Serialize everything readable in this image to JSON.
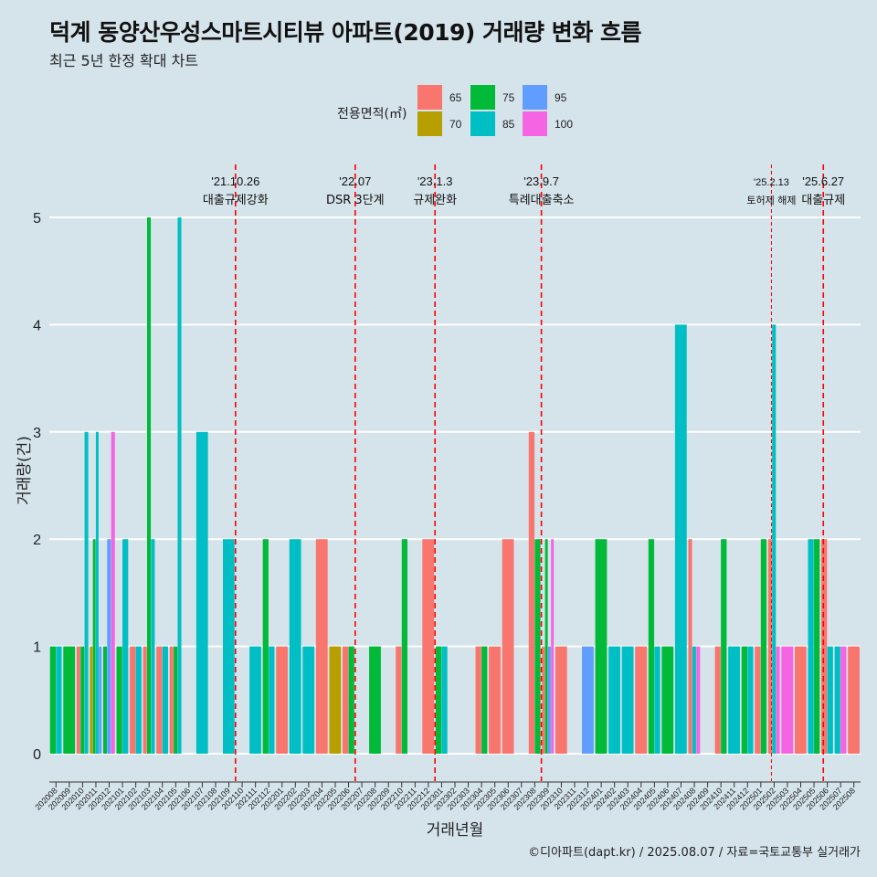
{
  "header": {
    "title": "덕계 동양산우성스마트시티뷰 아파트(2019) 거래량 변화 흐름",
    "subtitle": "최근 5년 한정 확대 차트"
  },
  "caption": "©디아파트(dapt.kr) / 2025.08.07 / 자료=국토교통부 실거래가",
  "colors": {
    "background": "#d5e3eb",
    "grid": "#ffffff",
    "vline": "#ff0000",
    "a65": "#f8766d",
    "a70": "#b79f00",
    "a75": "#00ba38",
    "a85": "#00bfc4",
    "a95": "#619cff",
    "a100": "#f564e3"
  },
  "chart_data": {
    "type": "bar",
    "stacking": "dodge",
    "title": "덕계 동양산우성스마트시티뷰 아파트(2019) 거래량 변화 흐름",
    "xlabel": "거래년월",
    "ylabel": "거래량(건)",
    "ylim": [
      -0.25,
      5.6
    ],
    "yticks": [
      0,
      1,
      2,
      3,
      4,
      5
    ],
    "grid": true,
    "legend": {
      "title": "전용면적(㎡)",
      "placement": "top",
      "items": [
        {
          "key": "65",
          "label": "65",
          "color": "#f8766d"
        },
        {
          "key": "70",
          "label": "70",
          "color": "#b79f00"
        },
        {
          "key": "75",
          "label": "75",
          "color": "#00ba38"
        },
        {
          "key": "85",
          "label": "85",
          "color": "#00bfc4"
        },
        {
          "key": "95",
          "label": "95",
          "color": "#619cff"
        },
        {
          "key": "100",
          "label": "100",
          "color": "#f564e3"
        }
      ]
    },
    "categories": [
      "202008",
      "202009",
      "202010",
      "202011",
      "202012",
      "202101",
      "202102",
      "202103",
      "202104",
      "202105",
      "202106",
      "202107",
      "202108",
      "202109",
      "202110",
      "202111",
      "202112",
      "202201",
      "202202",
      "202203",
      "202204",
      "202205",
      "202206",
      "202207",
      "202208",
      "202209",
      "202210",
      "202211",
      "202212",
      "202301",
      "202302",
      "202303",
      "202304",
      "202305",
      "202306",
      "202307",
      "202308",
      "202309",
      "202310",
      "202311",
      "202312",
      "202401",
      "202402",
      "202403",
      "202404",
      "202405",
      "202406",
      "202407",
      "202408",
      "202409",
      "202410",
      "202411",
      "202412",
      "202501",
      "202502",
      "202503",
      "202504",
      "202505",
      "202506",
      "202507",
      "202508"
    ],
    "groups": [
      {
        "month": "202008",
        "bars": [
          {
            "area": "75",
            "value": 1
          },
          {
            "area": "85",
            "value": 1
          }
        ]
      },
      {
        "month": "202009",
        "bars": [
          {
            "area": "75",
            "value": 1
          }
        ]
      },
      {
        "month": "202010",
        "bars": [
          {
            "area": "65",
            "value": 1
          },
          {
            "area": "75",
            "value": 1
          },
          {
            "area": "85",
            "value": 3
          }
        ]
      },
      {
        "month": "202011",
        "bars": [
          {
            "area": "70",
            "value": 1
          },
          {
            "area": "75",
            "value": 2
          },
          {
            "area": "85",
            "value": 3
          },
          {
            "area": "95",
            "value": 1
          }
        ]
      },
      {
        "month": "202012",
        "bars": [
          {
            "area": "75",
            "value": 1
          },
          {
            "area": "95",
            "value": 2
          },
          {
            "area": "100",
            "value": 3
          }
        ]
      },
      {
        "month": "202101",
        "bars": [
          {
            "area": "75",
            "value": 1
          },
          {
            "area": "85",
            "value": 2
          }
        ]
      },
      {
        "month": "202102",
        "bars": [
          {
            "area": "65",
            "value": 1
          },
          {
            "area": "85",
            "value": 1
          }
        ]
      },
      {
        "month": "202103",
        "bars": [
          {
            "area": "65",
            "value": 1
          },
          {
            "area": "75",
            "value": 5
          },
          {
            "area": "85",
            "value": 2
          }
        ]
      },
      {
        "month": "202104",
        "bars": [
          {
            "area": "65",
            "value": 1
          },
          {
            "area": "85",
            "value": 1
          }
        ]
      },
      {
        "month": "202105",
        "bars": [
          {
            "area": "65",
            "value": 1
          },
          {
            "area": "75",
            "value": 1
          },
          {
            "area": "85",
            "value": 5
          }
        ]
      },
      {
        "month": "202106",
        "bars": []
      },
      {
        "month": "202107",
        "bars": [
          {
            "area": "85",
            "value": 3
          }
        ]
      },
      {
        "month": "202108",
        "bars": []
      },
      {
        "month": "202109",
        "bars": [
          {
            "area": "85",
            "value": 2
          }
        ]
      },
      {
        "month": "202110",
        "bars": []
      },
      {
        "month": "202111",
        "bars": [
          {
            "area": "85",
            "value": 1
          }
        ]
      },
      {
        "month": "202112",
        "bars": [
          {
            "area": "75",
            "value": 2
          },
          {
            "area": "85",
            "value": 1
          }
        ]
      },
      {
        "month": "202201",
        "bars": [
          {
            "area": "65",
            "value": 1
          }
        ]
      },
      {
        "month": "202202",
        "bars": [
          {
            "area": "85",
            "value": 2
          }
        ]
      },
      {
        "month": "202203",
        "bars": [
          {
            "area": "85",
            "value": 1
          }
        ]
      },
      {
        "month": "202204",
        "bars": [
          {
            "area": "65",
            "value": 2
          }
        ]
      },
      {
        "month": "202205",
        "bars": [
          {
            "area": "70",
            "value": 1
          }
        ]
      },
      {
        "month": "202206",
        "bars": [
          {
            "area": "65",
            "value": 1
          },
          {
            "area": "75",
            "value": 1
          }
        ]
      },
      {
        "month": "202207",
        "bars": []
      },
      {
        "month": "202208",
        "bars": [
          {
            "area": "75",
            "value": 1
          }
        ]
      },
      {
        "month": "202209",
        "bars": []
      },
      {
        "month": "202210",
        "bars": [
          {
            "area": "65",
            "value": 1
          },
          {
            "area": "75",
            "value": 2
          }
        ]
      },
      {
        "month": "202211",
        "bars": []
      },
      {
        "month": "202212",
        "bars": [
          {
            "area": "65",
            "value": 2
          }
        ]
      },
      {
        "month": "202301",
        "bars": [
          {
            "area": "75",
            "value": 1
          },
          {
            "area": "85",
            "value": 1
          }
        ]
      },
      {
        "month": "202302",
        "bars": []
      },
      {
        "month": "202303",
        "bars": []
      },
      {
        "month": "202304",
        "bars": [
          {
            "area": "65",
            "value": 1
          },
          {
            "area": "75",
            "value": 1
          }
        ]
      },
      {
        "month": "202305",
        "bars": [
          {
            "area": "65",
            "value": 1
          }
        ]
      },
      {
        "month": "202306",
        "bars": [
          {
            "area": "65",
            "value": 2
          }
        ]
      },
      {
        "month": "202307",
        "bars": []
      },
      {
        "month": "202308",
        "bars": [
          {
            "area": "65",
            "value": 3
          },
          {
            "area": "75",
            "value": 2
          }
        ]
      },
      {
        "month": "202309",
        "bars": [
          {
            "area": "65",
            "value": 1
          },
          {
            "area": "75",
            "value": 2
          },
          {
            "area": "95",
            "value": 1
          },
          {
            "area": "100",
            "value": 2
          }
        ]
      },
      {
        "month": "202310",
        "bars": [
          {
            "area": "65",
            "value": 1
          }
        ]
      },
      {
        "month": "202311",
        "bars": []
      },
      {
        "month": "202312",
        "bars": [
          {
            "area": "95",
            "value": 1
          }
        ]
      },
      {
        "month": "202401",
        "bars": [
          {
            "area": "75",
            "value": 2
          }
        ]
      },
      {
        "month": "202402",
        "bars": [
          {
            "area": "85",
            "value": 1
          }
        ]
      },
      {
        "month": "202403",
        "bars": [
          {
            "area": "85",
            "value": 1
          }
        ]
      },
      {
        "month": "202404",
        "bars": [
          {
            "area": "65",
            "value": 1
          }
        ]
      },
      {
        "month": "202405",
        "bars": [
          {
            "area": "75",
            "value": 2
          },
          {
            "area": "85",
            "value": 1
          }
        ]
      },
      {
        "month": "202406",
        "bars": [
          {
            "area": "75",
            "value": 1
          }
        ]
      },
      {
        "month": "202407",
        "bars": [
          {
            "area": "85",
            "value": 4
          }
        ]
      },
      {
        "month": "202408",
        "bars": [
          {
            "area": "65",
            "value": 2
          },
          {
            "area": "85",
            "value": 1
          },
          {
            "area": "100",
            "value": 1
          }
        ]
      },
      {
        "month": "202409",
        "bars": []
      },
      {
        "month": "202410",
        "bars": [
          {
            "area": "65",
            "value": 1
          },
          {
            "area": "75",
            "value": 2
          }
        ]
      },
      {
        "month": "202411",
        "bars": [
          {
            "area": "85",
            "value": 1
          }
        ]
      },
      {
        "month": "202412",
        "bars": [
          {
            "area": "75",
            "value": 1
          },
          {
            "area": "85",
            "value": 1
          }
        ]
      },
      {
        "month": "202501",
        "bars": [
          {
            "area": "65",
            "value": 1
          },
          {
            "area": "75",
            "value": 2
          }
        ]
      },
      {
        "month": "202502",
        "bars": [
          {
            "area": "65",
            "value": 2
          },
          {
            "area": "85",
            "value": 4
          },
          {
            "area": "100",
            "value": 1
          }
        ]
      },
      {
        "month": "202503",
        "bars": [
          {
            "area": "100",
            "value": 1
          }
        ]
      },
      {
        "month": "202504",
        "bars": [
          {
            "area": "65",
            "value": 1
          }
        ]
      },
      {
        "month": "202505",
        "bars": [
          {
            "area": "85",
            "value": 2
          },
          {
            "area": "75",
            "value": 2
          }
        ]
      },
      {
        "month": "202506",
        "bars": [
          {
            "area": "65",
            "value": 2
          },
          {
            "area": "85",
            "value": 1
          }
        ]
      },
      {
        "month": "202507",
        "bars": [
          {
            "area": "85",
            "value": 1
          },
          {
            "area": "100",
            "value": 1
          }
        ]
      },
      {
        "month": "202508",
        "bars": [
          {
            "area": "65",
            "value": 1
          }
        ]
      }
    ],
    "annotations": [
      {
        "x": 14.0,
        "date": "'21.10.26",
        "text": "대출규제강화",
        "dash": "long"
      },
      {
        "x": 23.0,
        "date": "'22.07",
        "text": "DSR 3단계",
        "dash": "long"
      },
      {
        "x": 29.0,
        "date": "'23.1.3",
        "text": "규제완화",
        "dash": "long"
      },
      {
        "x": 37.0,
        "date": "'23.9.7",
        "text": "특례대출축소",
        "dash": "long"
      },
      {
        "x": 54.3,
        "date": "'25.2.13",
        "text": "토허제 해제",
        "dash": "short",
        "small": true
      },
      {
        "x": 58.2,
        "date": "'25.6.27",
        "text": "대출규제",
        "dash": "long"
      }
    ]
  }
}
